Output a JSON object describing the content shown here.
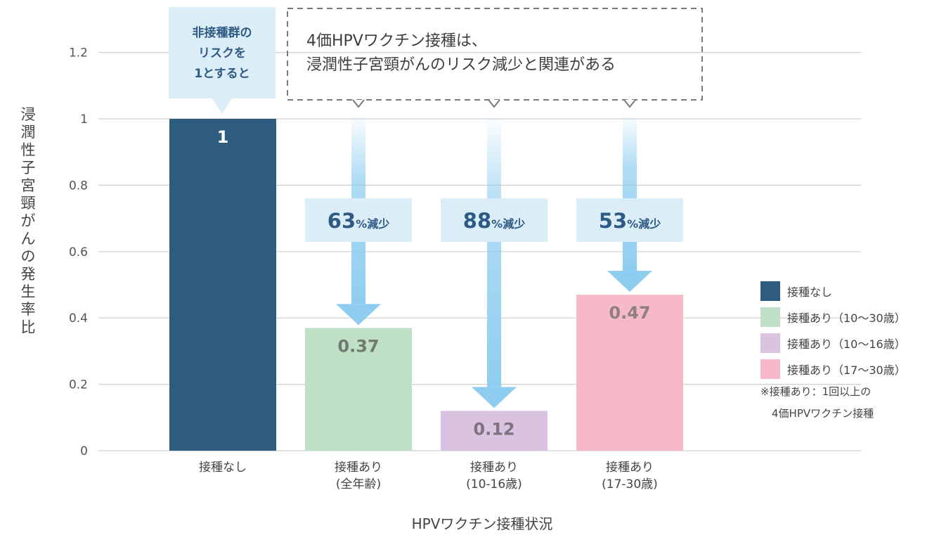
{
  "chart_data": {
    "type": "bar",
    "title": "",
    "xlabel": "HPVワクチン接種状況",
    "ylabel": "浸潤性子宮頸がんの発生率比",
    "ylim": [
      0,
      1.25
    ],
    "yticks": [
      0,
      0.2,
      0.4,
      0.6,
      0.8,
      1,
      1.2
    ],
    "ytick_labels": [
      "0",
      "0.2",
      "0.4",
      "0.6",
      "0.8",
      "1",
      "1.2"
    ],
    "grid": true,
    "legend_position": "right",
    "categories": [
      [
        "接種なし"
      ],
      [
        "接種あり",
        "(全年齢)"
      ],
      [
        "接種あり",
        "(10-16歳)"
      ],
      [
        "接種あり",
        "(17-30歳)"
      ]
    ],
    "values": [
      1,
      0.37,
      0.12,
      0.47
    ],
    "value_labels": [
      "1",
      "0.37",
      "0.12",
      "0.47"
    ],
    "colors": [
      "#2e5c7e",
      "#bfe0c5",
      "#d9c3e0",
      "#f6b9c8"
    ],
    "label_colors": [
      "#ffffff",
      "#6f7a70",
      "#7d7480",
      "#8f7f83"
    ],
    "callout": [
      "非接種群の",
      "リスクを",
      "1とすると"
    ],
    "banner": [
      "4価HPVワクチン接種は、",
      "浸潤性子宮頸がんのリスク減少と関連がある"
    ],
    "reductions": [
      {
        "num": "63",
        "unit": "%減少",
        "target": 1
      },
      {
        "num": "88",
        "unit": "%減少",
        "target": 2
      },
      {
        "num": "53",
        "unit": "%減少",
        "target": 3
      }
    ],
    "legend": [
      {
        "label": "接種なし",
        "color": "#2e5c7e"
      },
      {
        "label": "接種あり（10〜30歳）",
        "color": "#bfe0c5"
      },
      {
        "label": "接種あり（10〜16歳）",
        "color": "#d9c3e0"
      },
      {
        "label": "接種あり（17〜30歳）",
        "color": "#f6b9c8"
      }
    ],
    "note": [
      "※接種あり：1回以上の",
      "4価HPVワクチン接種"
    ]
  },
  "colors": {
    "grid": "#cfcfcf",
    "callout_bg": "#dbeef8",
    "arrow": "#8ecdf0",
    "banner_border": "#7a7a7a"
  }
}
